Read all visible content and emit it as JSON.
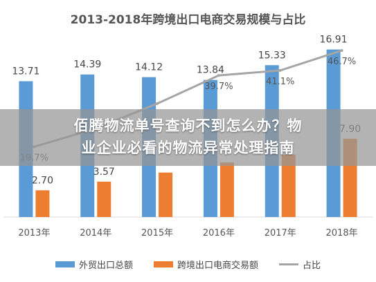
{
  "page": {
    "overlay_text_line1": "佰腾物流单号查询不到怎么办？物",
    "overlay_text_line2": "业企业必看的物流异常处理指南"
  },
  "chart_data": {
    "type": "bar",
    "title": "2013-2018年跨境出口电商交易规模与占比",
    "categories": [
      "2013年",
      "2014年",
      "2015年",
      "2016年",
      "2017年",
      "2018年"
    ],
    "series": [
      {
        "name": "外贸出口总额",
        "kind": "bar",
        "color": "#5b9bd5",
        "values": [
          13.71,
          14.39,
          14.12,
          13.84,
          15.33,
          16.91
        ],
        "labels": [
          "13.71",
          "14.39",
          "14.12",
          "13.84",
          "15.33",
          "16.91"
        ]
      },
      {
        "name": "跨境出口电商交易额",
        "kind": "bar",
        "color": "#ed7d31",
        "values": [
          2.7,
          3.57,
          4.49,
          5.5,
          6.3,
          7.9
        ],
        "labels": [
          "2.70",
          "3.57",
          "",
          "",
          "",
          "7.90"
        ]
      },
      {
        "name": "占比",
        "kind": "line",
        "color": "#a5a5a5",
        "values": [
          19.7,
          24.8,
          31.8,
          39.7,
          41.1,
          46.7
        ],
        "labels": [
          "19.7%",
          "",
          "",
          "39.7%",
          "41.1%",
          "46.7%"
        ]
      }
    ],
    "ylim": [
      0,
      18
    ],
    "y2lim": [
      0,
      50
    ],
    "grid": false,
    "legend_position": "bottom"
  }
}
